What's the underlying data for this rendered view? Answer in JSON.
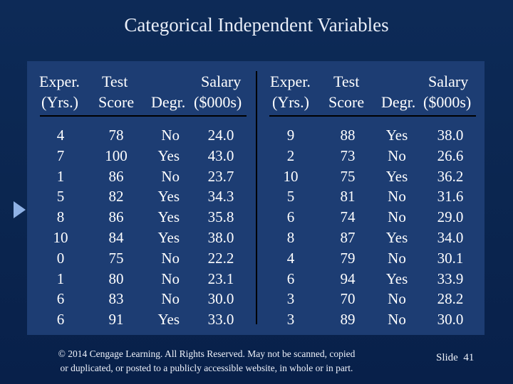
{
  "title": "Categorical Independent Variables",
  "headers": {
    "left": {
      "exper_line1": "Exper.",
      "exper_line2": "(Yrs.)",
      "test_line1": "Test",
      "score_line2": "Score",
      "degr": "Degr.",
      "salary_line1": "Salary",
      "salary_line2": "($000s)"
    },
    "right": {
      "exper_line1": "Exper.",
      "exper_line2": "(Yrs.)",
      "test_line1": "Test",
      "score_line2": "Score",
      "degr": "Degr.",
      "salary_line1": "Salary",
      "salary_line2": "($000s)"
    }
  },
  "table_left": {
    "exper": [
      "4",
      "7",
      "1",
      "5",
      "8",
      "10",
      "0",
      "1",
      "6",
      "6"
    ],
    "score": [
      "78",
      "100",
      "86",
      "82",
      "86",
      "84",
      "75",
      "80",
      "83",
      "91"
    ],
    "degr": [
      "No",
      "Yes",
      "No",
      "Yes",
      "Yes",
      "Yes",
      "No",
      "No",
      "No",
      "Yes"
    ],
    "salary": [
      "24.0",
      "43.0",
      "23.7",
      "34.3",
      "35.8",
      "38.0",
      "22.2",
      "23.1",
      "30.0",
      "33.0"
    ]
  },
  "table_right": {
    "exper": [
      "9",
      "2",
      "10",
      "5",
      "6",
      "8",
      "4",
      "6",
      "3",
      "3"
    ],
    "score": [
      "88",
      "73",
      "75",
      "81",
      "74",
      "87",
      "79",
      "94",
      "70",
      "89"
    ],
    "degr": [
      "Yes",
      "No",
      "Yes",
      "No",
      "No",
      "Yes",
      "No",
      "Yes",
      "No",
      "No"
    ],
    "salary": [
      "38.0",
      "26.6",
      "36.2",
      "31.6",
      "29.0",
      "34.0",
      "30.1",
      "33.9",
      "28.2",
      "30.0"
    ]
  },
  "footer": {
    "line1": "© 2014 Cengage Learning. All Rights Reserved. May not be scanned, copied",
    "line2": "or duplicated, or posted to a publicly accessible website, in whole or in part."
  },
  "slide": {
    "label": "Slide",
    "number": "41"
  },
  "colors": {
    "background": "#0b2650",
    "panel": "#1d3d73",
    "arrow": "#8fb2e6"
  }
}
